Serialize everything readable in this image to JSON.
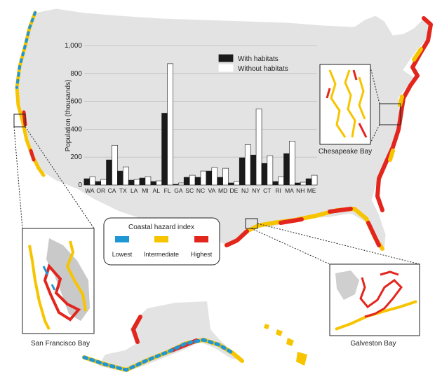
{
  "chart_data": {
    "type": "bar",
    "ylabel": "Population (thousands)",
    "ylim": [
      0,
      1000
    ],
    "yticks": [
      0,
      200,
      400,
      600,
      800,
      "1,000"
    ],
    "grid": true,
    "legend_position": "top-right",
    "categories": [
      "WA",
      "OR",
      "CA",
      "TX",
      "LA",
      "MI",
      "AL",
      "FL",
      "GA",
      "SC",
      "NC",
      "VA",
      "MD",
      "DE",
      "NJ",
      "NY",
      "CT",
      "RI",
      "MA",
      "NH",
      "ME"
    ],
    "series": [
      {
        "name": "With habitats",
        "color": "#1a1a1a",
        "values": [
          45,
          25,
          180,
          100,
          35,
          50,
          25,
          515,
          5,
          55,
          55,
          100,
          55,
          15,
          195,
          215,
          155,
          25,
          225,
          15,
          45
        ]
      },
      {
        "name": "Without habitats",
        "color": "#ffffff",
        "values": [
          60,
          40,
          285,
          130,
          40,
          60,
          30,
          870,
          15,
          70,
          100,
          125,
          120,
          25,
          290,
          545,
          210,
          60,
          315,
          20,
          70
        ]
      }
    ]
  },
  "map": {
    "hazard_legend": {
      "title": "Coastal hazard index",
      "items": [
        {
          "label": "Lowest",
          "color": "#1f97d4"
        },
        {
          "label": "Intermediate",
          "color": "#f7c400"
        },
        {
          "label": "Highest",
          "color": "#e3261d"
        }
      ]
    },
    "insets": {
      "chesapeake": "Chesapeake Bay",
      "san_francisco": "San  Francisco Bay",
      "galveston": "Galveston Bay"
    }
  }
}
